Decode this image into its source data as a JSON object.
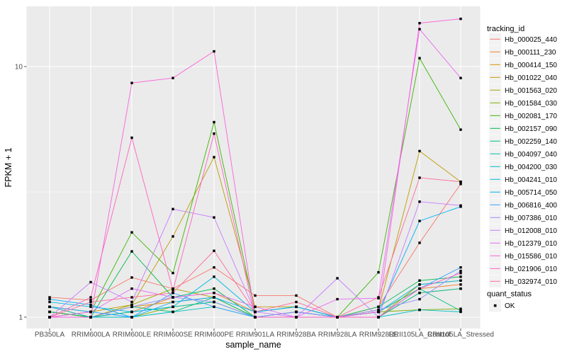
{
  "chart_data": {
    "type": "line",
    "title": "",
    "xlabel": "sample_name",
    "ylabel": "FPKM + 1",
    "y_scale": "log10",
    "y_tick_values": [
      1,
      10
    ],
    "y_tick_labels": [
      "1",
      "10"
    ],
    "y_minor_values": [
      3.1623
    ],
    "ylim": [
      0.9,
      17.4
    ],
    "panel_bg": "#EBEBEB",
    "grid_color": "#FFFFFF",
    "tick_color": "#4D4D4D",
    "marker": "black-square",
    "legend_position": "right",
    "categories": [
      "PB350LA",
      "RRIM600LA",
      "RRIM600LE",
      "RRIM600SE",
      "RRIM600PE",
      "RRIM901LA",
      "RRIM928BA",
      "RRIM928LA",
      "RRIM928LE",
      "RRII105LA_Control",
      "RRII105LA_Stressed"
    ],
    "series": [
      {
        "name": "Hb_000025_440",
        "color": "#F8766D",
        "values": [
          1.2,
          1.17,
          1.44,
          1.3,
          1.58,
          1.22,
          1.22,
          1.0,
          1.1,
          1.98,
          3.4
        ]
      },
      {
        "name": "Hb_000111_230",
        "color": "#EA8331",
        "values": [
          1.1,
          1.0,
          1.05,
          1.2,
          1.25,
          1.05,
          1.1,
          1.0,
          1.05,
          1.3,
          1.35
        ]
      },
      {
        "name": "Hb_000414_150",
        "color": "#D89000",
        "values": [
          1.05,
          1.0,
          1.1,
          1.15,
          1.2,
          1.0,
          1.05,
          1.0,
          1.0,
          1.25,
          1.3
        ]
      },
      {
        "name": "Hb_001022_040",
        "color": "#C09B00",
        "values": [
          1.0,
          1.05,
          1.12,
          2.1,
          4.35,
          1.1,
          1.1,
          1.0,
          1.07,
          4.6,
          3.47
        ]
      },
      {
        "name": "Hb_001563_020",
        "color": "#A3A500",
        "values": [
          1.0,
          1.0,
          1.12,
          1.3,
          1.2,
          1.0,
          1.05,
          1.0,
          1.0,
          1.35,
          1.4
        ]
      },
      {
        "name": "Hb_001584_030",
        "color": "#7CAE00",
        "values": [
          1.05,
          1.0,
          1.0,
          1.1,
          1.15,
          1.0,
          1.0,
          1.0,
          1.05,
          1.07,
          1.08
        ]
      },
      {
        "name": "Hb_002081_170",
        "color": "#39B600",
        "values": [
          1.1,
          1.05,
          2.18,
          1.5,
          6.0,
          1.05,
          1.1,
          1.0,
          1.51,
          10.8,
          5.6
        ]
      },
      {
        "name": "Hb_002157_090",
        "color": "#00BB4E",
        "values": [
          1.05,
          1.0,
          1.83,
          1.2,
          1.3,
          1.0,
          1.05,
          1.0,
          1.1,
          1.4,
          1.45
        ]
      },
      {
        "name": "Hb_002259_140",
        "color": "#00BF7D",
        "values": [
          1.0,
          1.0,
          1.1,
          1.05,
          1.2,
          1.0,
          1.0,
          1.0,
          1.05,
          1.3,
          1.06
        ]
      },
      {
        "name": "Hb_004097_040",
        "color": "#00C1A3",
        "values": [
          1.0,
          1.0,
          1.05,
          1.1,
          1.15,
          1.0,
          1.05,
          1.0,
          1.0,
          1.25,
          1.3
        ]
      },
      {
        "name": "Hb_004200_030",
        "color": "#00BFC4",
        "values": [
          1.1,
          1.0,
          1.0,
          1.05,
          1.1,
          1.0,
          1.0,
          1.0,
          1.0,
          1.07,
          1.05
        ]
      },
      {
        "name": "Hb_004241_010",
        "color": "#00BAE0",
        "values": [
          1.15,
          1.1,
          1.05,
          1.1,
          1.45,
          1.05,
          1.1,
          1.0,
          1.05,
          1.35,
          1.4
        ]
      },
      {
        "name": "Hb_005714_050",
        "color": "#00B0F6",
        "values": [
          1.18,
          1.12,
          1.0,
          1.15,
          1.2,
          1.05,
          1.1,
          1.0,
          1.05,
          2.42,
          2.76
        ]
      },
      {
        "name": "Hb_006816_400",
        "color": "#35A2FF",
        "values": [
          1.1,
          1.05,
          1.0,
          1.25,
          1.1,
          1.0,
          1.05,
          1.0,
          1.0,
          1.3,
          1.58
        ]
      },
      {
        "name": "Hb_007386_010",
        "color": "#9590FF",
        "values": [
          1.0,
          1.0,
          1.1,
          1.2,
          1.15,
          1.0,
          1.05,
          1.0,
          1.07,
          1.18,
          1.53
        ]
      },
      {
        "name": "Hb_012008_010",
        "color": "#C77CFF",
        "values": [
          1.0,
          1.38,
          1.15,
          2.7,
          2.5,
          1.05,
          1.0,
          1.43,
          1.0,
          2.89,
          2.79
        ]
      },
      {
        "name": "Hb_012379_010",
        "color": "#E76BF3",
        "values": [
          1.0,
          1.05,
          1.3,
          1.2,
          1.25,
          1.1,
          1.0,
          1.18,
          1.19,
          14.1,
          9.0
        ]
      },
      {
        "name": "Hb_015586_010",
        "color": "#FA62DB",
        "values": [
          1.0,
          1.0,
          8.6,
          9.0,
          11.5,
          1.0,
          1.0,
          1.0,
          1.05,
          14.9,
          15.5
        ]
      },
      {
        "name": "Hb_021906_010",
        "color": "#FF61C3",
        "values": [
          1.0,
          1.2,
          5.2,
          1.28,
          5.4,
          1.0,
          1.0,
          1.0,
          1.0,
          1.3,
          1.5
        ]
      },
      {
        "name": "Hb_032974_010",
        "color": "#FF6A98",
        "values": [
          1.0,
          1.15,
          1.2,
          1.25,
          1.84,
          1.05,
          1.15,
          1.0,
          1.2,
          3.6,
          3.47
        ]
      }
    ],
    "legend": {
      "tracking_title": "tracking_id",
      "quant_title": "quant_status",
      "quant_items": [
        {
          "label": "OK",
          "marker": "black-square"
        }
      ]
    }
  }
}
